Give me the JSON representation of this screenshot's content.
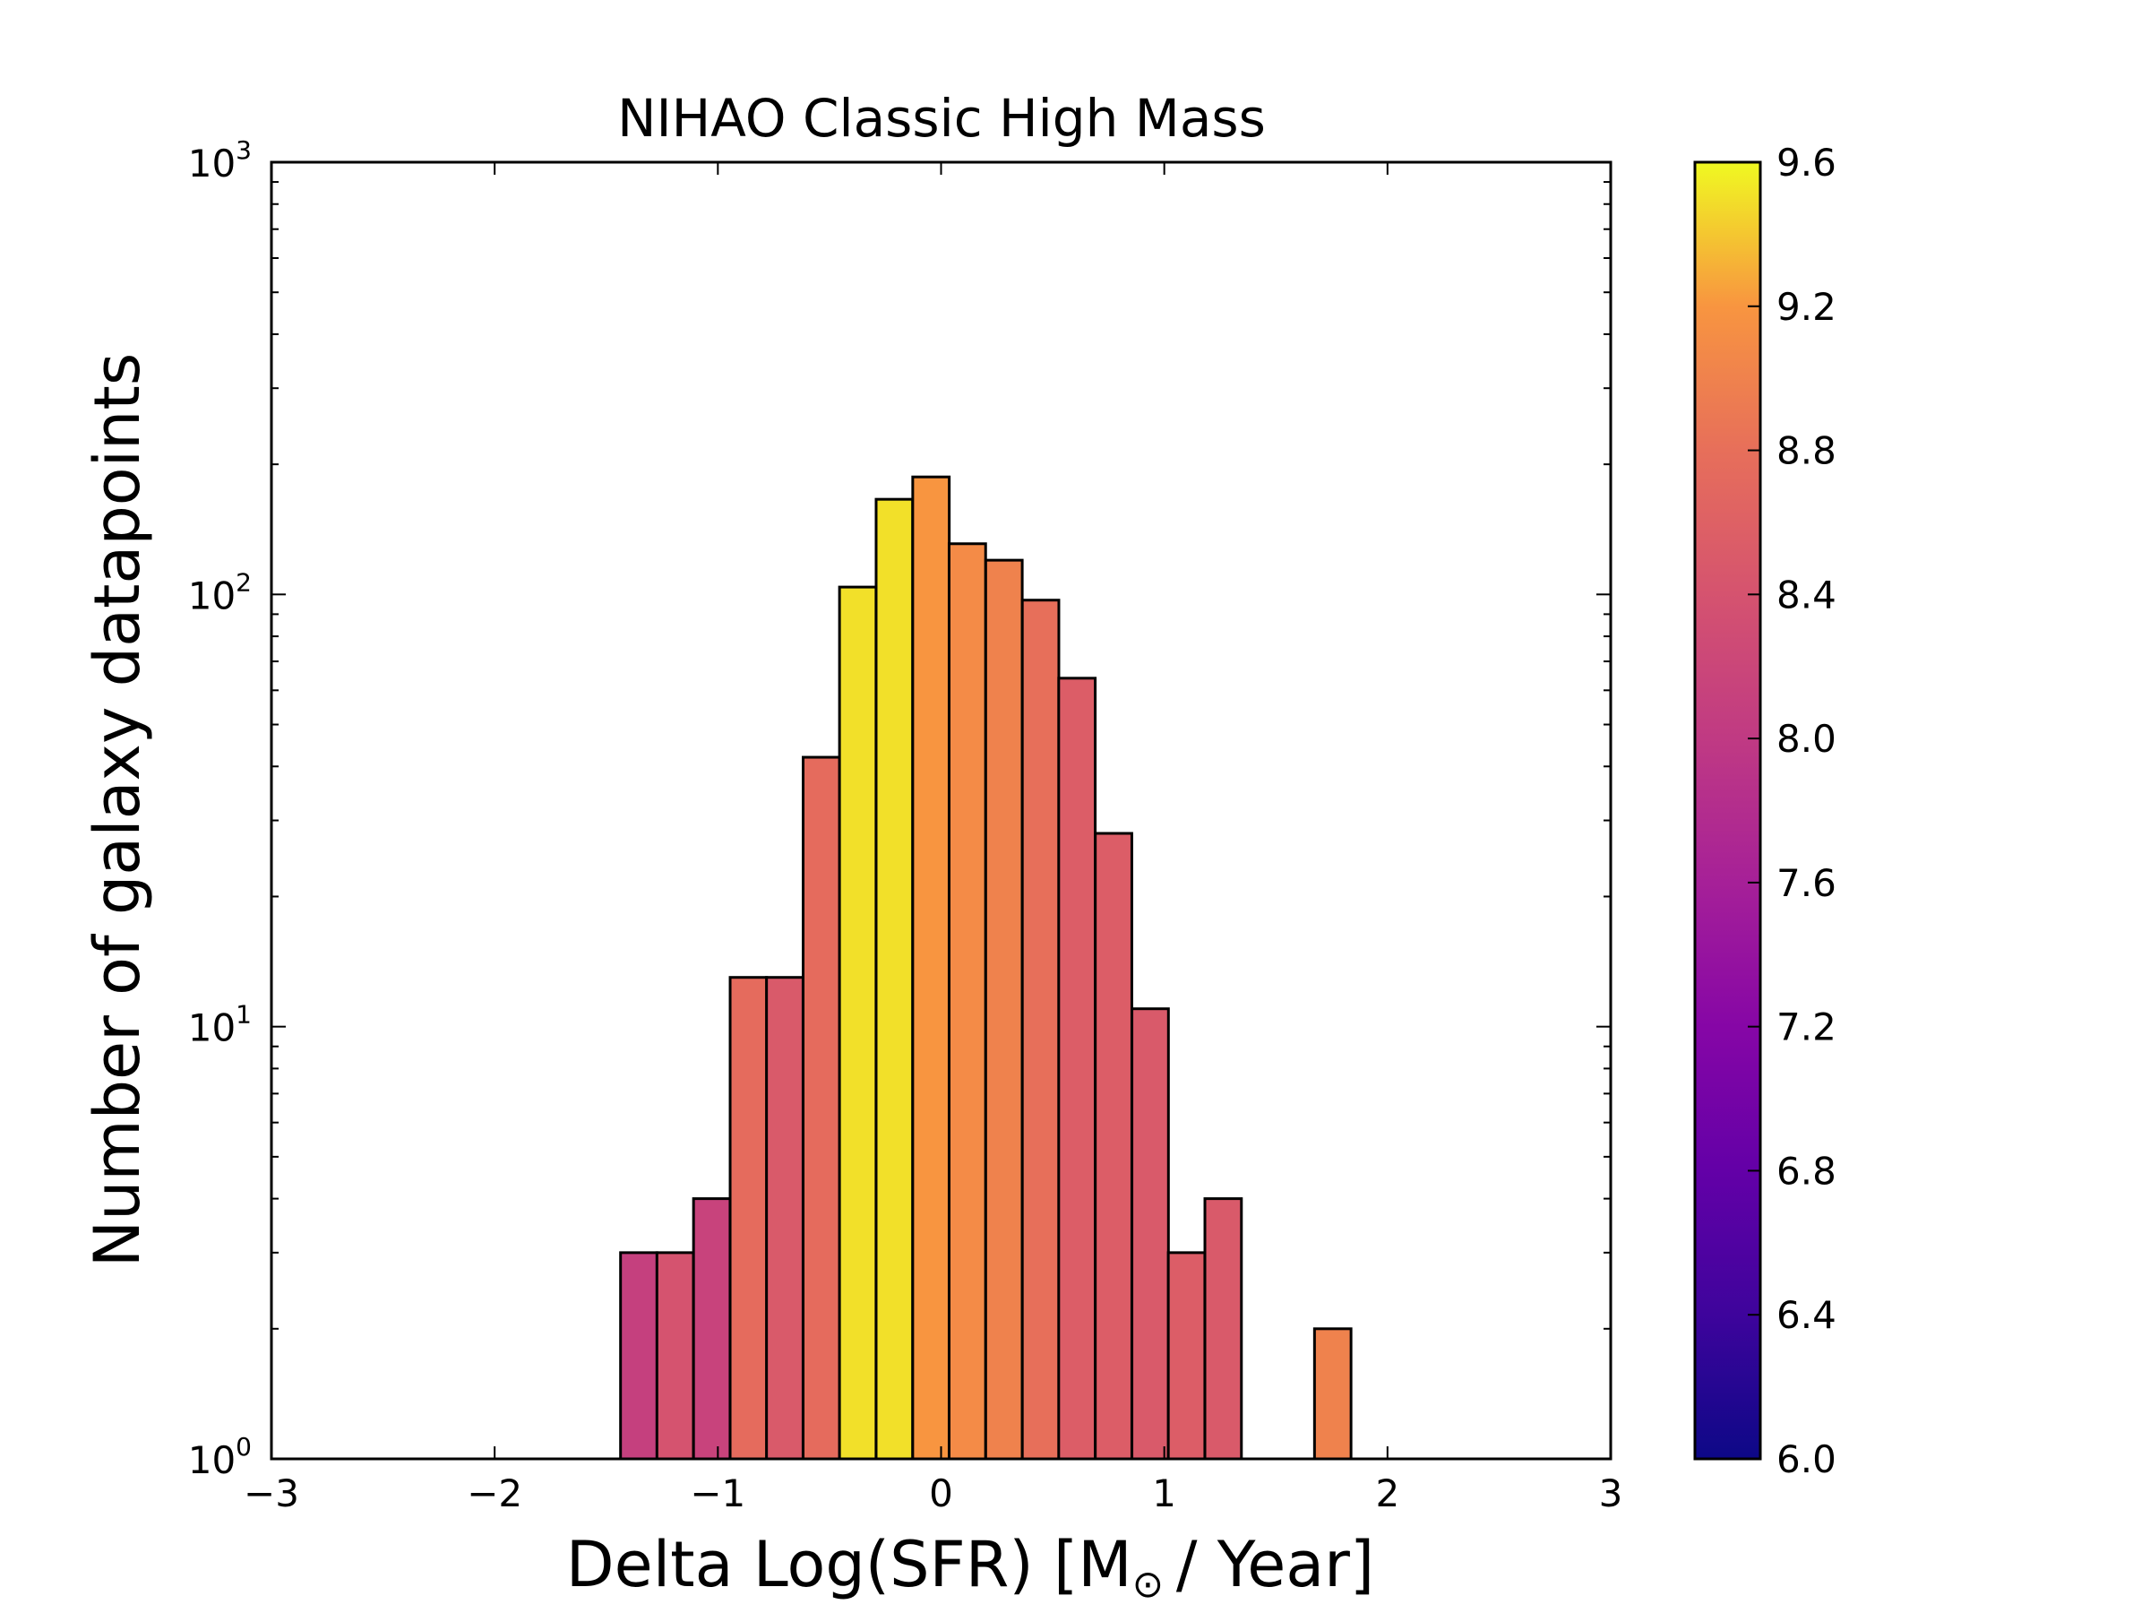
{
  "chart_data": {
    "type": "bar",
    "title": "NIHAO Classic High Mass",
    "xlabel": "Delta Log(SFR) [M",
    "xlabel_symbol": "⊙",
    "xlabel_suffix": "/ Year]",
    "ylabel": "Number of galaxy datapoints",
    "xlim": [
      -3,
      3
    ],
    "ylim": [
      1,
      1000
    ],
    "yscale": "log",
    "x_ticks": [
      {
        "value": -3,
        "label": "−3"
      },
      {
        "value": -2,
        "label": "−2"
      },
      {
        "value": -1,
        "label": "−1"
      },
      {
        "value": 0,
        "label": "0"
      },
      {
        "value": 1,
        "label": "1"
      },
      {
        "value": 2,
        "label": "2"
      },
      {
        "value": 3,
        "label": "3"
      }
    ],
    "y_ticks": [
      {
        "value": 1,
        "base": "10",
        "exp": "0"
      },
      {
        "value": 10,
        "base": "10",
        "exp": "1"
      },
      {
        "value": 100,
        "base": "10",
        "exp": "2"
      },
      {
        "value": 1000,
        "base": "10",
        "exp": "3"
      }
    ],
    "bin_width": 0.1636,
    "bars": [
      {
        "x_left": -1.436,
        "count": 3,
        "color_value": 8.1
      },
      {
        "x_left": -1.273,
        "count": 3,
        "color_value": 8.4
      },
      {
        "x_left": -1.109,
        "count": 4,
        "color_value": 8.15
      },
      {
        "x_left": -0.945,
        "count": 13,
        "color_value": 8.75
      },
      {
        "x_left": -0.782,
        "count": 13,
        "color_value": 8.5
      },
      {
        "x_left": -0.618,
        "count": 42,
        "color_value": 8.75
      },
      {
        "x_left": -0.455,
        "count": 104,
        "color_value": 9.5
      },
      {
        "x_left": -0.291,
        "count": 166,
        "color_value": 9.5
      },
      {
        "x_left": -0.127,
        "count": 187,
        "color_value": 9.2
      },
      {
        "x_left": 0.036,
        "count": 131,
        "color_value": 9.1
      },
      {
        "x_left": 0.2,
        "count": 120,
        "color_value": 9.0
      },
      {
        "x_left": 0.364,
        "count": 97,
        "color_value": 8.8
      },
      {
        "x_left": 0.527,
        "count": 64,
        "color_value": 8.55
      },
      {
        "x_left": 0.691,
        "count": 28,
        "color_value": 8.55
      },
      {
        "x_left": 0.855,
        "count": 11,
        "color_value": 8.5
      },
      {
        "x_left": 1.018,
        "count": 3,
        "color_value": 8.55
      },
      {
        "x_left": 1.182,
        "count": 4,
        "color_value": 8.5
      },
      {
        "x_left": 1.673,
        "count": 2,
        "color_value": 9.0
      }
    ],
    "colorbar": {
      "min": 6.0,
      "max": 9.6,
      "colormap": "plasma",
      "ticks": [
        "6.0",
        "6.4",
        "6.8",
        "7.2",
        "7.6",
        "8.0",
        "8.4",
        "8.8",
        "9.2",
        "9.6"
      ]
    },
    "grid": false,
    "legend": "none"
  }
}
